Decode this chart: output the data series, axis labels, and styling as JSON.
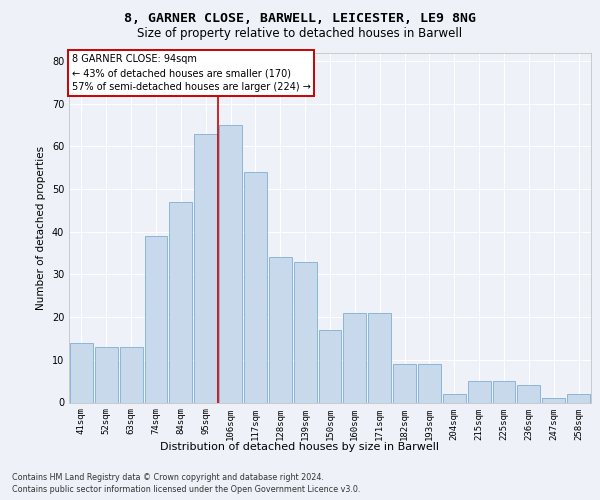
{
  "title1": "8, GARNER CLOSE, BARWELL, LEICESTER, LE9 8NG",
  "title2": "Size of property relative to detached houses in Barwell",
  "xlabel": "Distribution of detached houses by size in Barwell",
  "ylabel": "Number of detached properties",
  "categories": [
    "41sqm",
    "52sqm",
    "63sqm",
    "74sqm",
    "84sqm",
    "95sqm",
    "106sqm",
    "117sqm",
    "128sqm",
    "139sqm",
    "150sqm",
    "160sqm",
    "171sqm",
    "182sqm",
    "193sqm",
    "204sqm",
    "215sqm",
    "225sqm",
    "236sqm",
    "247sqm",
    "258sqm"
  ],
  "values": [
    14,
    13,
    13,
    39,
    47,
    63,
    65,
    54,
    34,
    33,
    17,
    21,
    21,
    9,
    9,
    2,
    5,
    5,
    4,
    1,
    2
  ],
  "bar_color": "#c8d9ec",
  "bar_edge_color": "#7fafd4",
  "annotation_line0": "8 GARNER CLOSE: 94sqm",
  "annotation_line1": "← 43% of detached houses are smaller (170)",
  "annotation_line2": "57% of semi-detached houses are larger (224) →",
  "annotation_box_color": "#ffffff",
  "annotation_box_edge": "#cc0000",
  "vline_color": "#cc0000",
  "vline_x_index": 5,
  "ylim": [
    0,
    82
  ],
  "yticks": [
    0,
    10,
    20,
    30,
    40,
    50,
    60,
    70,
    80
  ],
  "footer1": "Contains HM Land Registry data © Crown copyright and database right 2024.",
  "footer2": "Contains public sector information licensed under the Open Government Licence v3.0.",
  "background_color": "#eef2f8",
  "plot_bg_color": "#eef2f8",
  "grid_color": "#ffffff",
  "title1_fontsize": 9.5,
  "title2_fontsize": 8.5,
  "ylabel_fontsize": 7.5,
  "xlabel_fontsize": 8,
  "tick_fontsize": 6.5,
  "footer_fontsize": 5.8
}
